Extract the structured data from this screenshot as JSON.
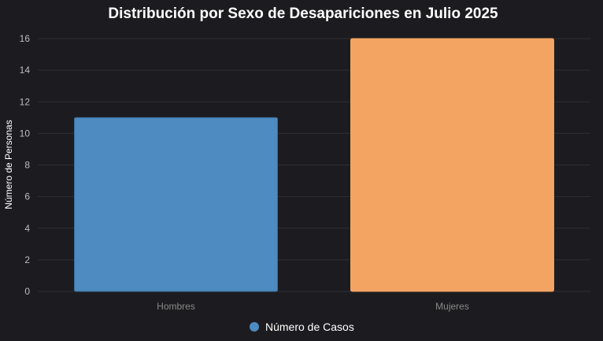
{
  "chart_data": {
    "type": "bar",
    "title": "Distribución por Sexo de Desapariciones en Julio 2025",
    "xlabel": "",
    "ylabel": "Número de Personas",
    "categories": [
      "Hombres",
      "Mujeres"
    ],
    "series": [
      {
        "name": "Número de Casos",
        "values": [
          11,
          16
        ]
      }
    ],
    "bar_colors": [
      "#4d8bc0",
      "#f4a462"
    ],
    "bar_border_colors": [
      "#3b6f9e",
      "#f4a462"
    ],
    "legend_color": "#4d8bc0",
    "ylim": [
      0,
      16
    ],
    "yticks": [
      0,
      2,
      4,
      6,
      8,
      10,
      12,
      14,
      16
    ],
    "grid": true,
    "legend_position": "bottom-center",
    "background_color": "#1c1c20",
    "grid_color": "#2e2e33"
  }
}
